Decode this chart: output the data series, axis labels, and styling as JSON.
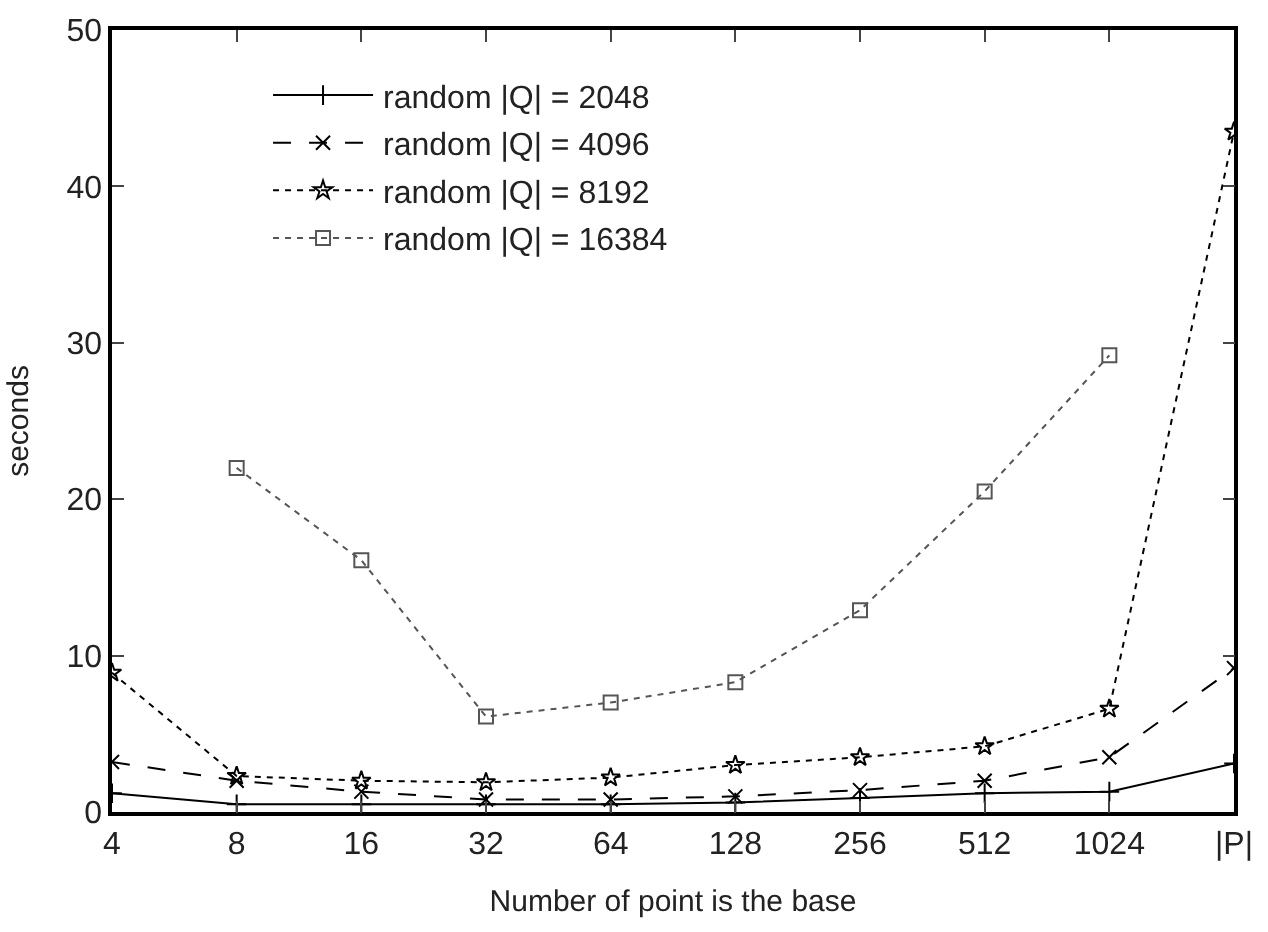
{
  "chart_data": {
    "type": "line",
    "xlabel": "Number of point is the base",
    "ylabel": "seconds",
    "categories": [
      "4",
      "8",
      "16",
      "32",
      "64",
      "128",
      "256",
      "512",
      "1024",
      "|P|"
    ],
    "ylim": [
      0,
      50
    ],
    "yticks": [
      0,
      10,
      20,
      30,
      40,
      50
    ],
    "legend": "top",
    "series": [
      {
        "name": "random |Q| = 2048",
        "color": "#000000",
        "line_style": "solid",
        "marker": "cross",
        "values": [
          1.2,
          0.5,
          0.5,
          0.5,
          0.5,
          0.6,
          0.9,
          1.2,
          1.3,
          3.1
        ]
      },
      {
        "name": "random |Q| = 4096",
        "color": "#000000",
        "line_style": "dashed",
        "marker": "x",
        "values": [
          3.2,
          2.0,
          1.3,
          0.8,
          0.8,
          1.0,
          1.4,
          2.0,
          3.5,
          9.2
        ]
      },
      {
        "name": "random |Q| = 8192",
        "color": "#000000",
        "line_style": "dotted",
        "marker": "star",
        "values": [
          8.9,
          2.3,
          2.0,
          1.9,
          2.2,
          3.0,
          3.5,
          4.2,
          6.6,
          43.5
        ]
      },
      {
        "name": "random |Q| = 16384",
        "color": "#555555",
        "line_style": "dotted",
        "marker": "square",
        "values": [
          null,
          22,
          16.1,
          6.1,
          7.0,
          8.3,
          12.9,
          20.5,
          29.2,
          null
        ]
      }
    ]
  }
}
